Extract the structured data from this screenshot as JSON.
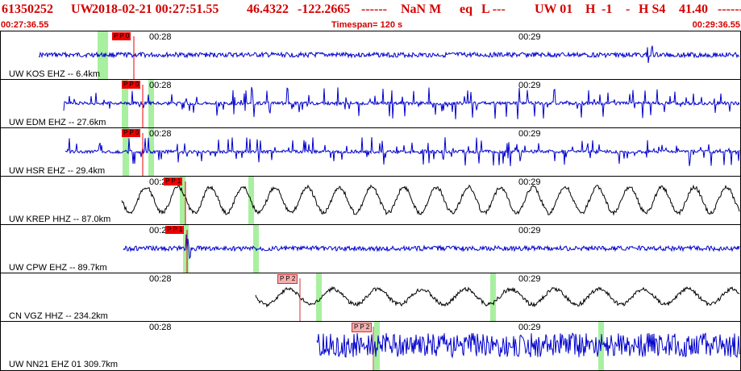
{
  "header": {
    "event_id": "61350252",
    "network": "UW",
    "datetime": "2018-02-21 00:27:51.55",
    "lat": "46.4322",
    "lon": "-122.2665",
    "depth": "------",
    "magnitude": "NaN M",
    "event_type": "eq",
    "gtype": "L ---",
    "source": "UW 01",
    "quality": "H",
    "count": "-1",
    "dash": "-",
    "solution": "H S4",
    "rms": "41.40",
    "trailing": "------"
  },
  "subheader": {
    "start_time": "00:27:36.55",
    "timespan": "Timespan= 120 s",
    "end_time": "00:29:36.55"
  },
  "colors": {
    "header_red": "#d40000",
    "trace_blue": "#0000cc",
    "trace_black": "#000000",
    "pick_red": "#ee0000",
    "pick_pink": "#f4b0b0",
    "window_green": "#a8f0a0"
  },
  "time_ticks": [
    "00:28",
    "00:29"
  ],
  "traces": [
    {
      "label": "UW KOS EHZ -- 6.4km",
      "pick": "P P 0",
      "pick_style": "red",
      "color": "blue"
    },
    {
      "label": "UW EDM EHZ -- 27.6km",
      "pick": "P P 0",
      "pick_style": "red",
      "color": "blue"
    },
    {
      "label": "UW HSR EHZ -- 29.4km",
      "pick": "P P 0",
      "pick_style": "red",
      "color": "blue"
    },
    {
      "label": "UW KREP HHZ -- 87.0km",
      "pick": "P P 1",
      "pick_style": "red",
      "color": "black"
    },
    {
      "label": "UW CPW EHZ -- 89.7km",
      "pick": "P P 1",
      "pick_style": "red",
      "color": "blue"
    },
    {
      "label": "CN VGZ HHZ -- 234.2km",
      "pick": "P P 2",
      "pick_style": "pink",
      "color": "black"
    },
    {
      "label": "UW NN21 EHZ 01 309.7km",
      "pick": "P P 2",
      "pick_style": "pink",
      "color": "blue"
    }
  ]
}
